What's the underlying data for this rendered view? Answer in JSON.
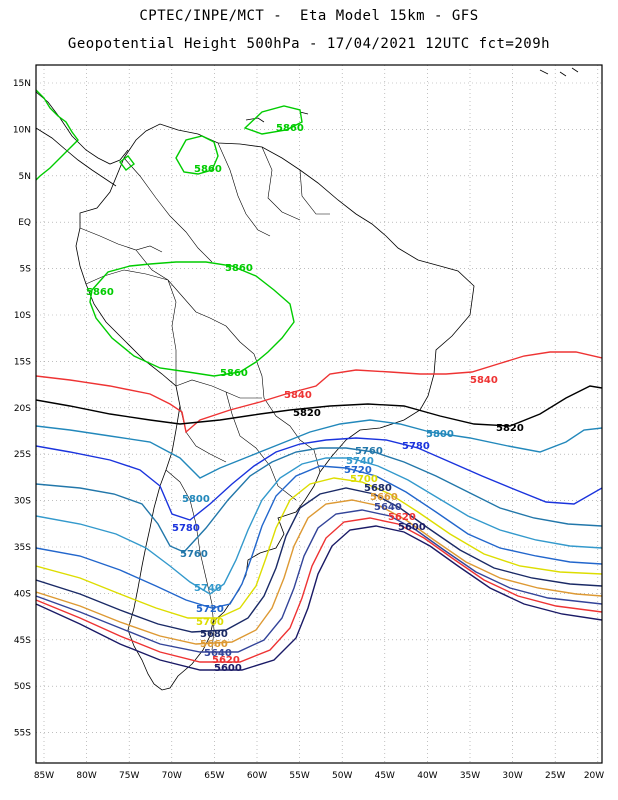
{
  "header": {
    "line1": "CPTEC/INPE/MCT -  Eta Model 15km - GFS",
    "line2": "Geopotential Height 500hPa - 17/04/2021 12UTC fct=209h"
  },
  "axes": {
    "lat_labels": [
      "15N",
      "10N",
      "5N",
      "EQ",
      "5S",
      "10S",
      "15S",
      "20S",
      "25S",
      "30S",
      "35S",
      "40S",
      "45S",
      "50S",
      "55S"
    ],
    "lon_labels": [
      "85W",
      "80W",
      "75W",
      "70W",
      "65W",
      "60W",
      "55W",
      "50W",
      "45W",
      "40W",
      "35W",
      "30W",
      "25W",
      "20W"
    ]
  },
  "contours": [
    {
      "value": "5860",
      "color": "#00cc00"
    },
    {
      "value": "5840",
      "color": "#ee3333"
    },
    {
      "value": "5820",
      "color": "#000000"
    },
    {
      "value": "5800",
      "color": "#2288bb"
    },
    {
      "value": "5780",
      "color": "#1a33dd"
    },
    {
      "value": "5760",
      "color": "#2277aa"
    },
    {
      "value": "5740",
      "color": "#3399cc"
    },
    {
      "value": "5720",
      "color": "#2266cc"
    },
    {
      "value": "5700",
      "color": "#dddd00"
    },
    {
      "value": "5680",
      "color": "#1a2a66"
    },
    {
      "value": "5660",
      "color": "#dd9933"
    },
    {
      "value": "5640",
      "color": "#334499"
    },
    {
      "value": "5620",
      "color": "#ee3333"
    },
    {
      "value": "5600",
      "color": "#1a1a66"
    }
  ]
}
